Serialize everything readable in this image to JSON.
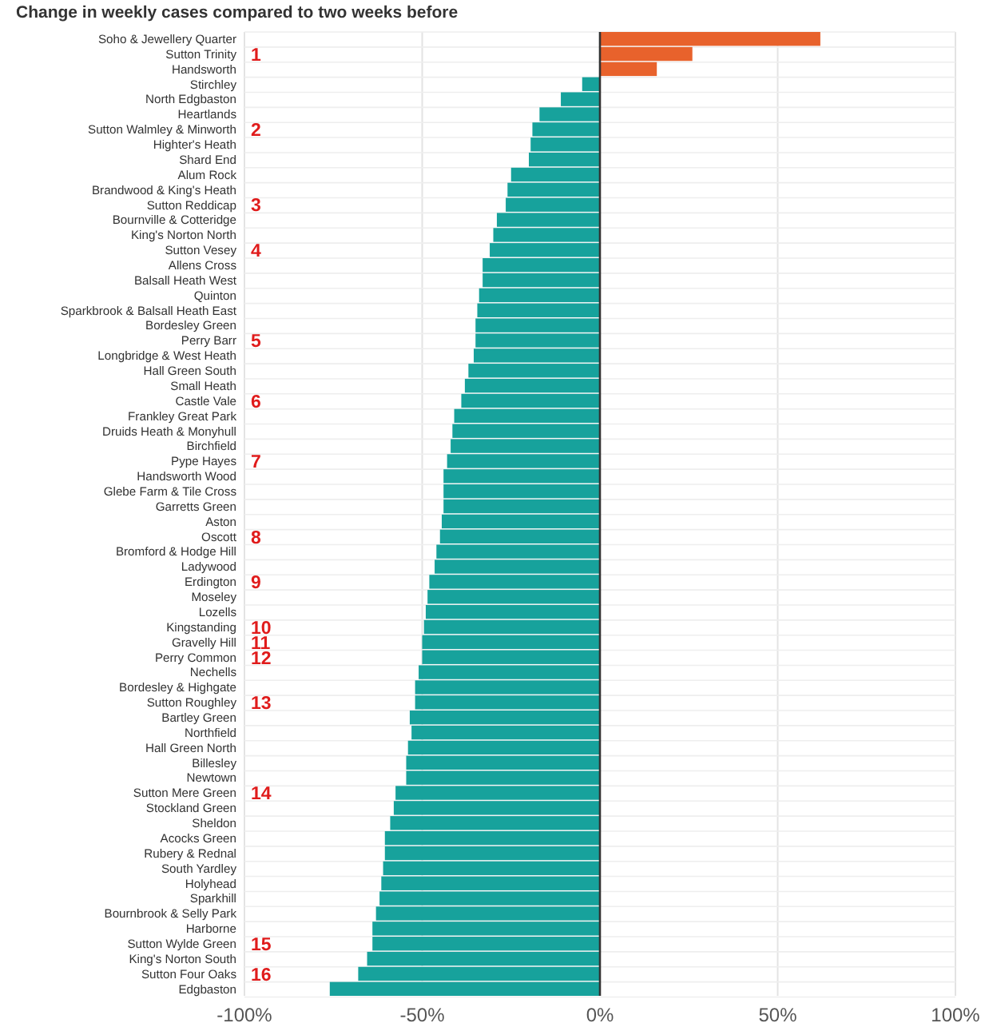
{
  "chart_data": {
    "type": "bar",
    "orientation": "horizontal",
    "title": "Change in weekly cases compared to two weeks before",
    "categories": [
      "Soho & Jewellery Quarter",
      "Sutton Trinity",
      "Handsworth",
      "Stirchley",
      "North Edgbaston",
      "Heartlands",
      "Sutton Walmley & Minworth",
      "Highter's Heath",
      "Shard End",
      "Alum Rock",
      "Brandwood & King's Heath",
      "Sutton Reddicap",
      "Bournville & Cotteridge",
      "King's Norton North",
      "Sutton Vesey",
      "Allens Cross",
      "Balsall Heath West",
      "Quinton",
      "Sparkbrook & Balsall Heath East",
      "Bordesley Green",
      "Perry Barr",
      "Longbridge & West Heath",
      "Hall Green South",
      "Small Heath",
      "Castle Vale",
      "Frankley Great Park",
      "Druids Heath & Monyhull",
      "Birchfield",
      "Pype Hayes",
      "Handsworth Wood",
      "Glebe Farm & Tile Cross",
      "Garretts Green",
      "Aston",
      "Oscott",
      "Bromford & Hodge Hill",
      "Ladywood",
      "Erdington",
      "Moseley",
      "Lozells",
      "Kingstanding",
      "Gravelly Hill",
      "Perry Common",
      "Nechells",
      "Bordesley & Highgate",
      "Sutton Roughley",
      "Bartley Green",
      "Northfield",
      "Hall Green North",
      "Billesley",
      "Newtown",
      "Sutton Mere Green",
      "Stockland Green",
      "Sheldon",
      "Acocks Green",
      "Rubery & Rednal",
      "South Yardley",
      "Holyhead",
      "Sparkhill",
      "Bournbrook & Selly Park",
      "Harborne",
      "Sutton Wylde Green",
      "King's Norton South",
      "Sutton Four Oaks",
      "Edgbaston"
    ],
    "values": [
      62,
      26,
      16,
      -5,
      -11,
      -17,
      -19,
      -19.5,
      -20,
      -25,
      -26,
      -26.5,
      -29,
      -30,
      -31,
      -33,
      -33,
      -34,
      -34.5,
      -35,
      -35,
      -35.5,
      -37,
      -38,
      -39,
      -41,
      -41.5,
      -42,
      -43,
      -44,
      -44,
      -44,
      -44.5,
      -45,
      -46,
      -46.5,
      -48,
      -48.5,
      -49,
      -49.5,
      -50,
      -50,
      -51,
      -52,
      -52,
      -53.5,
      -53,
      -54,
      -54.5,
      -54.5,
      -57.5,
      -58,
      -59,
      -60.5,
      -60.5,
      -61,
      -61.5,
      -62,
      -63,
      -64,
      -64,
      -65.5,
      -68,
      -76
    ],
    "colors": [
      "#e8622c",
      "#e8622c",
      "#e8622c",
      "#17a29c",
      "#17a29c",
      "#17a29c",
      "#17a29c",
      "#17a29c",
      "#17a29c",
      "#17a29c",
      "#17a29c",
      "#17a29c",
      "#17a29c",
      "#17a29c",
      "#17a29c",
      "#17a29c",
      "#17a29c",
      "#17a29c",
      "#17a29c",
      "#17a29c",
      "#17a29c",
      "#17a29c",
      "#17a29c",
      "#17a29c",
      "#17a29c",
      "#17a29c",
      "#17a29c",
      "#17a29c",
      "#17a29c",
      "#17a29c",
      "#17a29c",
      "#17a29c",
      "#17a29c",
      "#17a29c",
      "#17a29c",
      "#17a29c",
      "#17a29c",
      "#17a29c",
      "#17a29c",
      "#17a29c",
      "#17a29c",
      "#17a29c",
      "#17a29c",
      "#17a29c",
      "#17a29c",
      "#17a29c",
      "#17a29c",
      "#17a29c",
      "#17a29c",
      "#17a29c",
      "#17a29c",
      "#17a29c",
      "#17a29c",
      "#17a29c",
      "#17a29c",
      "#17a29c",
      "#17a29c",
      "#17a29c",
      "#17a29c",
      "#17a29c",
      "#17a29c",
      "#17a29c",
      "#17a29c",
      "#17a29c"
    ],
    "xlim": [
      -100,
      100
    ],
    "xticks": [
      {
        "value": -100,
        "label": "-100%"
      },
      {
        "value": -50,
        "label": "-50%"
      },
      {
        "value": 0,
        "label": "0%"
      },
      {
        "value": 50,
        "label": "50%"
      },
      {
        "value": 100,
        "label": "100%"
      }
    ],
    "grid": true,
    "annotations": [
      "1",
      "2",
      "3",
      "4",
      "5",
      "6",
      "7",
      "8",
      "9",
      "10",
      "11",
      "12",
      "13",
      "14",
      "15",
      "16"
    ]
  }
}
